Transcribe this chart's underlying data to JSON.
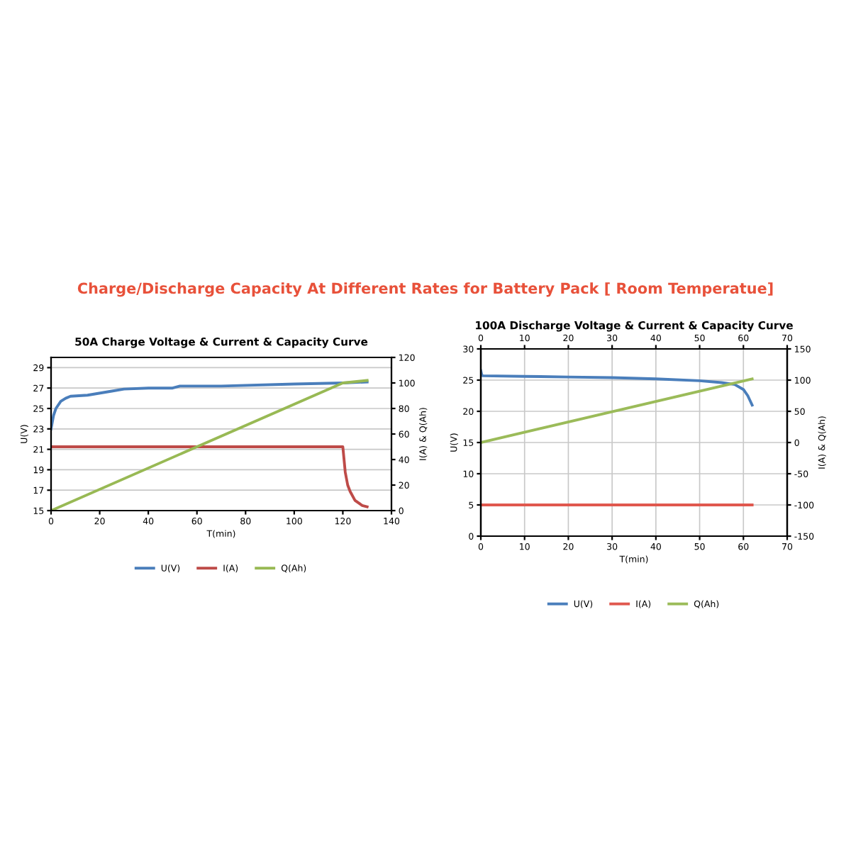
{
  "chart_data": [
    {
      "type": "line",
      "title": "50A Charge Voltage & Current & Capacity Curve",
      "annotations": [
        "Charge/Discharge Capacity At Different Rates for Battery Pack [ Room Temperatue]"
      ],
      "xlabel": "T(min)",
      "ylabel": "U(V)",
      "y2label": "I(A) & Q(Ah)",
      "xlim": [
        0,
        140
      ],
      "xticks": [
        0,
        20,
        40,
        60,
        80,
        100,
        120,
        140
      ],
      "ylim": [
        15,
        30
      ],
      "yticks": [
        15,
        17,
        19,
        21,
        23,
        25,
        27,
        29
      ],
      "y2lim": [
        0,
        120
      ],
      "y2ticks": [
        0,
        20,
        40,
        60,
        80,
        100,
        120
      ],
      "grid": "y",
      "legend": "bottom",
      "line_style": "solid",
      "series": [
        {
          "name": "U(V)",
          "color": "#4a7ebb",
          "x": [
            0,
            1,
            2,
            4,
            6,
            8,
            15,
            25,
            30,
            40,
            50,
            53,
            70,
            100,
            120,
            130
          ],
          "values": [
            23,
            24.3,
            25,
            25.7,
            26.0,
            26.2,
            26.3,
            26.7,
            26.9,
            27.0,
            27.0,
            27.2,
            27.2,
            27.4,
            27.5,
            27.6
          ]
        },
        {
          "name": "I(A)",
          "color": "#be4b48",
          "axis": "y2",
          "x": [
            0,
            120,
            121,
            122,
            123,
            125,
            128,
            130
          ],
          "values": [
            50,
            50,
            30,
            20,
            15,
            8,
            4,
            3
          ]
        },
        {
          "name": "Q(Ah)",
          "color": "#98b954",
          "axis": "y2",
          "x": [
            0,
            120,
            130
          ],
          "values": [
            0,
            100,
            102
          ]
        }
      ]
    },
    {
      "type": "line",
      "title": "100A Discharge Voltage & Current & Capacity Curve",
      "xlabel": "T(min)",
      "ylabel": "U(V)",
      "y2label": "I(A) & Q(Ah)",
      "xlim": [
        0,
        70
      ],
      "xticks": [
        0,
        10,
        20,
        30,
        40,
        50,
        60,
        70
      ],
      "x2lim": [
        0,
        70
      ],
      "x2ticks": [
        0,
        10,
        20,
        30,
        40,
        50,
        60,
        70
      ],
      "ylim": [
        0,
        30
      ],
      "yticks": [
        0,
        5,
        10,
        15,
        20,
        25,
        30
      ],
      "y2lim": [
        -150,
        150
      ],
      "y2ticks": [
        -150,
        -100,
        -50,
        0,
        50,
        100,
        150
      ],
      "grid": true,
      "legend": "bottom",
      "line_style": "solid",
      "series": [
        {
          "name": "U(V)",
          "color": "#4a7ebb",
          "x": [
            0,
            0.2,
            0.4,
            10,
            20,
            30,
            40,
            50,
            55,
            58,
            60,
            61,
            62
          ],
          "values": [
            26.5,
            25.9,
            25.7,
            25.6,
            25.5,
            25.4,
            25.2,
            24.9,
            24.6,
            24.3,
            23.5,
            22.5,
            21
          ]
        },
        {
          "name": "I(A)",
          "color": "#e0584e",
          "axis": "y2",
          "x": [
            0,
            62
          ],
          "values": [
            -100,
            -100
          ]
        },
        {
          "name": "Q(Ah)",
          "color": "#9bbb59",
          "axis": "y2",
          "x": [
            0,
            62
          ],
          "values": [
            0,
            102
          ]
        }
      ]
    }
  ]
}
